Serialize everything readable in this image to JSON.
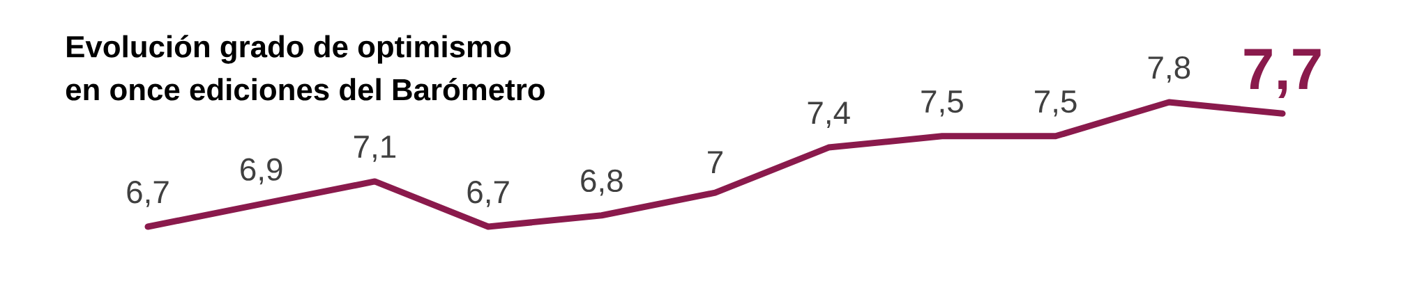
{
  "chart_data": {
    "type": "line",
    "title": "Evolución grado de optimismo\nen once ediciones del Barómetro",
    "categories": [
      null,
      null,
      null,
      null,
      null,
      null,
      null,
      null,
      null,
      null,
      null
    ],
    "values": [
      6.7,
      6.9,
      7.1,
      6.7,
      6.8,
      7.0,
      7.4,
      7.5,
      7.5,
      7.8,
      7.7
    ],
    "value_labels": [
      "6,7",
      "6,9",
      "7,1",
      "6,7",
      "6,8",
      "7",
      "7,4",
      "7,5",
      "7,5",
      "7,8",
      "7,7"
    ],
    "color": "#8a1a4c"
  }
}
